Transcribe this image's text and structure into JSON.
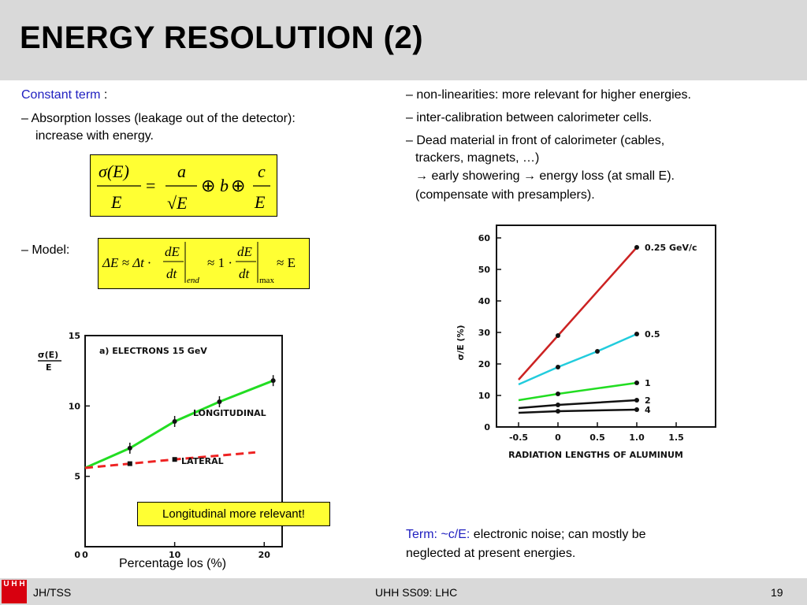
{
  "title": "ENERGY RESOLUTION (2)",
  "left": {
    "constant_term": "Constant term",
    "colon": " :",
    "absorption": "– Absorption losses (leakage out of the detector):",
    "absorption2": "increase with energy.",
    "model": "– Model:"
  },
  "right": {
    "line1": "– non-linearities: more relevant for higher energies.",
    "line2": "– inter-calibration between calorimeter cells.",
    "line3": "– Dead material in front of calorimeter (cables,",
    "line4": "trackers, magnets, …)",
    "line5": "→ early showering → energy loss (at small E).",
    "line6": "(compensate with presamplers).",
    "term_label": "Term: ~c/E:",
    "term_text": " electronic noise; can mostly be",
    "term_text2": "neglected at present energies."
  },
  "formula1": {
    "sigma": "σ(E)",
    "E": "E",
    "a": "a",
    "sqrtE": "√E",
    "b": "b",
    "c": "c",
    "E2": "E",
    "eq": "=",
    "oplus1": "⊕",
    "oplus2": "⊕"
  },
  "formula2": {
    "lhs": "ΔE ≈ Δt ·",
    "dE": "dE",
    "dt": "dt",
    "end": "end",
    "approx1": "≈ 1 ·",
    "dE2": "dE",
    "dt2": "dt",
    "max": "max",
    "approx2": "≈ E"
  },
  "callout": "Longitudinal more relevant!",
  "xcaption": "Percentage los (%)",
  "footer": {
    "left": "JH/TSS",
    "center": "UHH SS09: LHC",
    "page": "19",
    "logo": "U H H"
  },
  "chart_data": [
    {
      "type": "line",
      "title": "a) ELECTRONS 15 GeV",
      "ylabel": "σ(E) / E",
      "xlabel": "Percentage los (%)",
      "xlim": [
        0,
        22
      ],
      "ylim": [
        0,
        15
      ],
      "xticks": [
        "0",
        "10",
        "20"
      ],
      "yticks": [
        "5",
        "10",
        "15"
      ],
      "series": [
        {
          "name": "LONGITUDINAL",
          "color": "#22dd22",
          "style": "solid",
          "x": [
            0,
            5,
            10,
            15,
            21
          ],
          "y": [
            5.6,
            7.0,
            8.9,
            10.3,
            11.8
          ]
        },
        {
          "name": "LATERAL",
          "color": "#ee2222",
          "style": "dashed",
          "x": [
            0,
            5,
            10,
            19
          ],
          "y": [
            5.6,
            5.9,
            6.2,
            6.7
          ]
        }
      ]
    },
    {
      "type": "line",
      "ylabel": "σ/E (%)",
      "xlabel": "RADIATION LENGTHS OF ALUMINUM",
      "xlim": [
        -0.5,
        1.5
      ],
      "ylim": [
        0,
        60
      ],
      "xticks": [
        "-0.5",
        "0",
        "0.5",
        "1.0",
        "1.5"
      ],
      "yticks": [
        "0",
        "10",
        "20",
        "30",
        "40",
        "50",
        "60"
      ],
      "series": [
        {
          "name": "0.25 GeV/c",
          "color": "#cc2222",
          "x": [
            -0.5,
            0,
            1.0
          ],
          "y": [
            15,
            29,
            57
          ]
        },
        {
          "name": "0.5",
          "color": "#22ccdd",
          "x": [
            -0.5,
            0,
            0.5,
            1.0
          ],
          "y": [
            13.5,
            19,
            24,
            29.5
          ]
        },
        {
          "name": "1",
          "color": "#22dd22",
          "x": [
            -0.5,
            0,
            1.0
          ],
          "y": [
            8.5,
            10.5,
            14
          ]
        },
        {
          "name": "2",
          "color": "#111111",
          "x": [
            -0.5,
            0,
            1.0
          ],
          "y": [
            6,
            7,
            8.5
          ]
        },
        {
          "name": "4",
          "color": "#111111",
          "x": [
            -0.5,
            0,
            1.0
          ],
          "y": [
            4.5,
            5,
            5.5
          ]
        }
      ]
    }
  ]
}
